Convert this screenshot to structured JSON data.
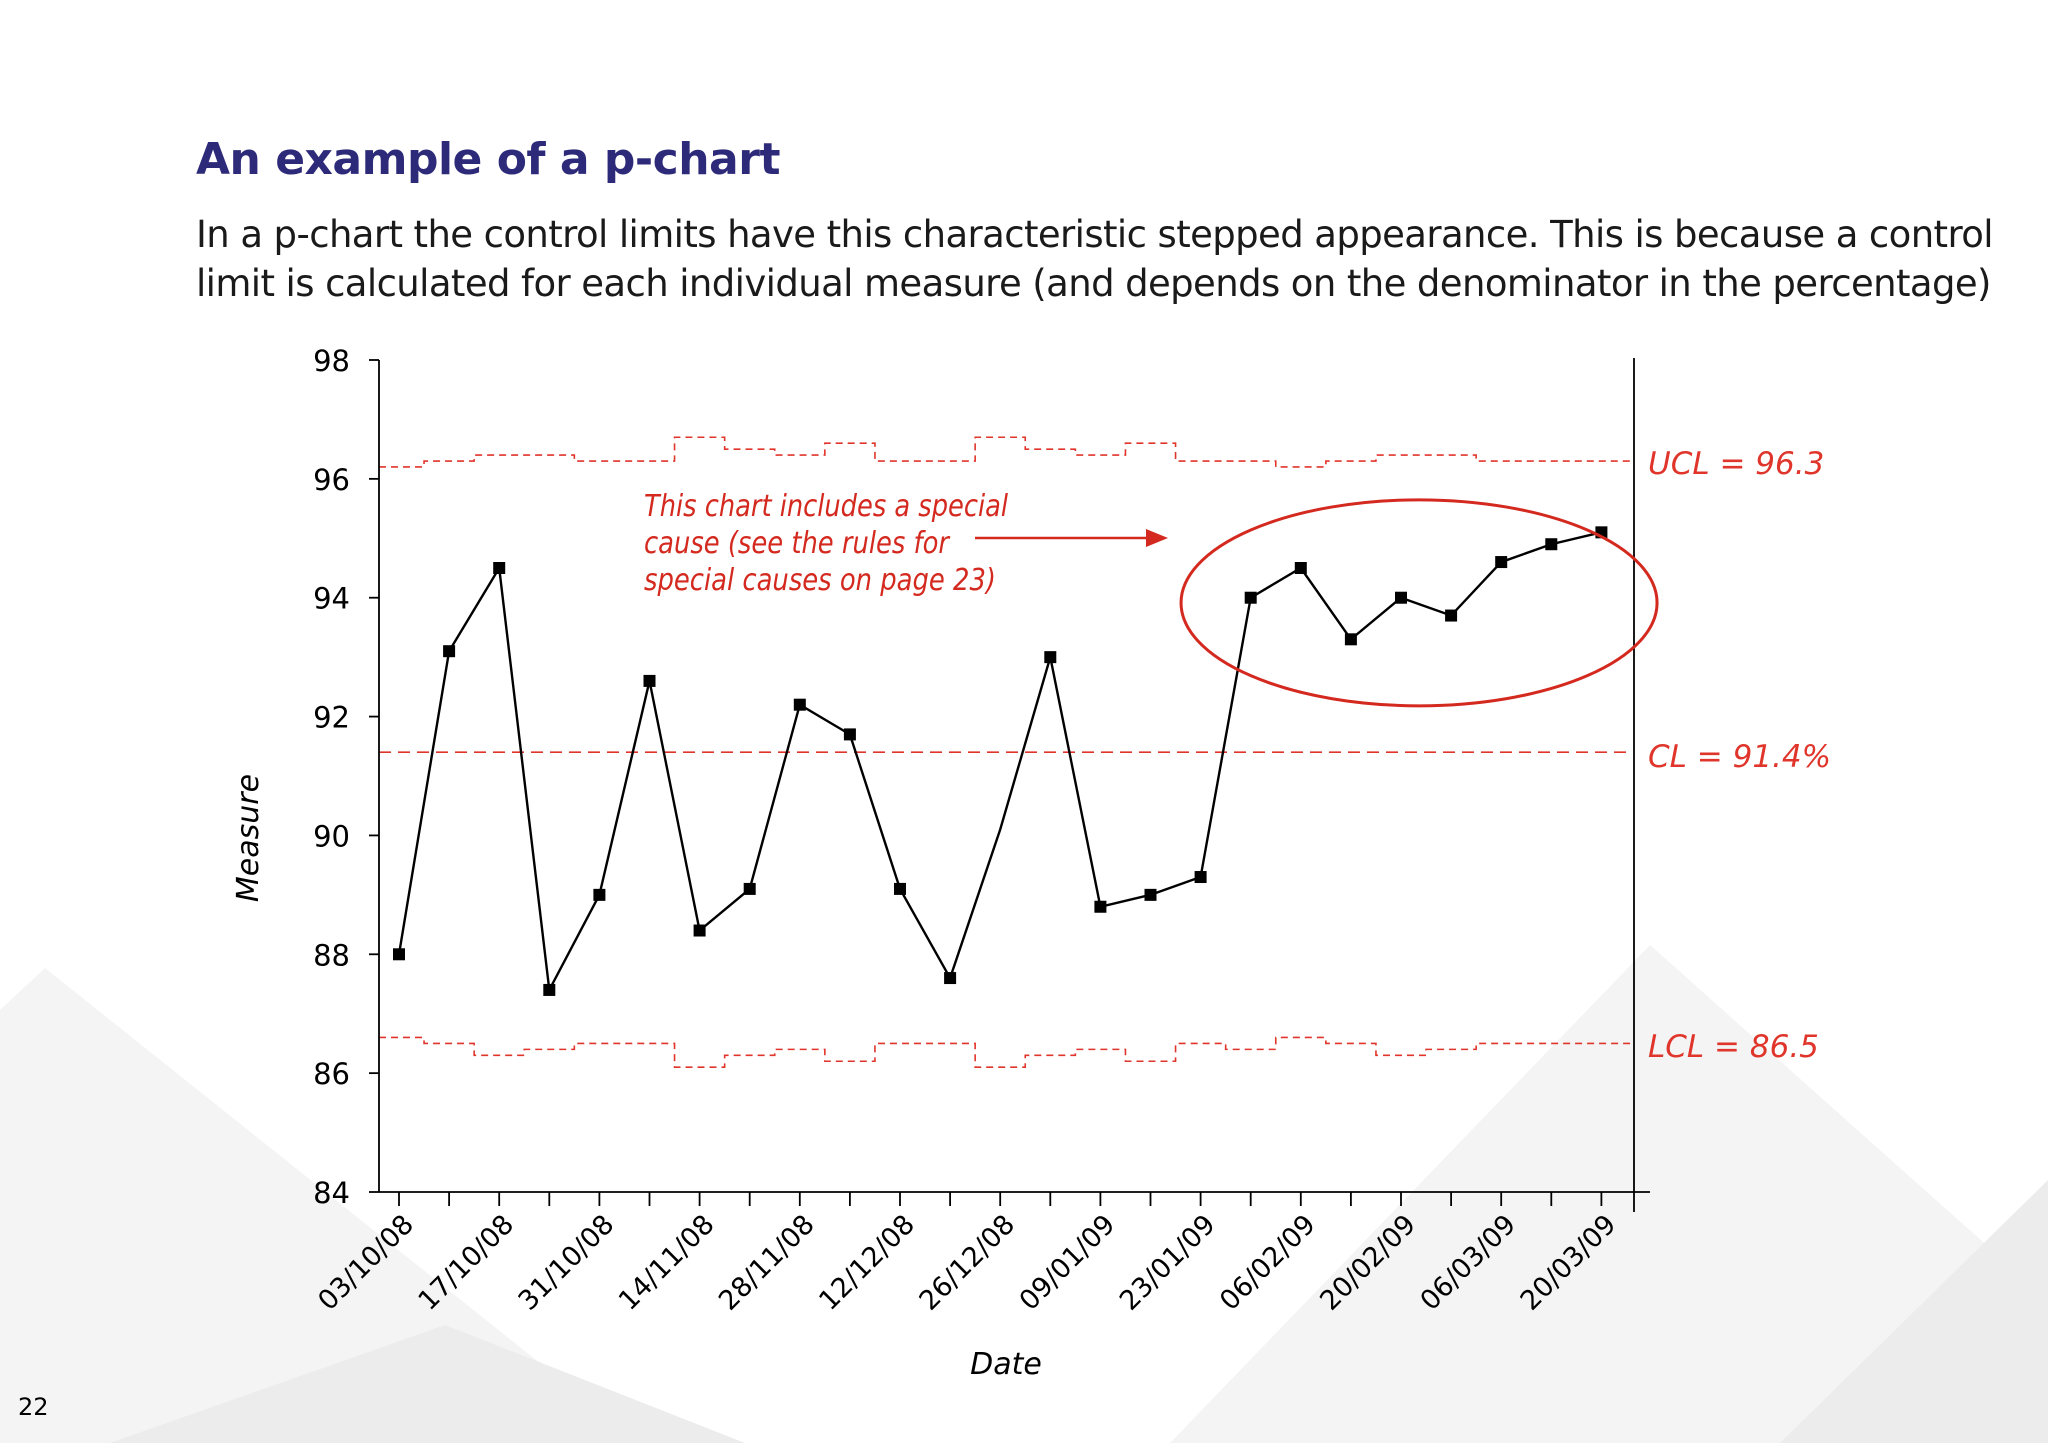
{
  "page": {
    "title": "An example of a p-chart",
    "subtitle": "In a p-chart the control limits have this characteristic stepped appearance. This is because a control limit is calculated for each individual measure (and depends on the denominator in the percentage)",
    "page_number": "22"
  },
  "chart_data": {
    "type": "line",
    "xlabel": "Date",
    "ylabel": "Measure",
    "ylim": [
      84,
      98
    ],
    "yticks": [
      84,
      86,
      88,
      90,
      92,
      94,
      96,
      98
    ],
    "x_tick_labels": [
      "03/10/08",
      "17/10/08",
      "31/10/08",
      "14/11/08",
      "28/11/08",
      "12/12/08",
      "26/12/08",
      "09/01/09",
      "23/01/09",
      "06/02/09",
      "20/02/09",
      "06/03/09",
      "20/03/09"
    ],
    "values": [
      88.0,
      93.1,
      94.5,
      87.4,
      89.0,
      92.6,
      88.4,
      89.1,
      92.2,
      91.7,
      89.1,
      87.6,
      90.1,
      93.0,
      88.8,
      89.0,
      89.3,
      94.0,
      94.5,
      93.3,
      94.0,
      93.7,
      94.6,
      94.9,
      95.1
    ],
    "markers": [
      true,
      true,
      true,
      true,
      true,
      true,
      true,
      true,
      true,
      true,
      true,
      true,
      false,
      true,
      true,
      true,
      true,
      true,
      true,
      true,
      true,
      true,
      true,
      true,
      true
    ],
    "ucl_steps": [
      96.2,
      96.3,
      96.4,
      96.4,
      96.3,
      96.3,
      96.7,
      96.5,
      96.4,
      96.6,
      96.3,
      96.3,
      96.7,
      96.5,
      96.4,
      96.6,
      96.3,
      96.3,
      96.2,
      96.3,
      96.4,
      96.4,
      96.3,
      96.3,
      96.3
    ],
    "lcl_steps": [
      86.6,
      86.5,
      86.3,
      86.4,
      86.5,
      86.5,
      86.1,
      86.3,
      86.4,
      86.2,
      86.5,
      86.5,
      86.1,
      86.3,
      86.4,
      86.2,
      86.5,
      86.4,
      86.6,
      86.5,
      86.3,
      86.4,
      86.5,
      86.5,
      86.5
    ],
    "cl": 91.4,
    "limit_labels": {
      "ucl": "UCL = 96.3",
      "cl": "CL = 91.4%",
      "lcl": "LCL = 86.5"
    },
    "annotation": {
      "lines": [
        "This chart includes a special",
        "cause (see the rules for",
        "special causes on page 23)"
      ],
      "highlight_from_index": 17
    },
    "colors": {
      "series": "#000000",
      "limits": "#e0352b",
      "annotation": "#d4291f",
      "axis": "#000000"
    }
  }
}
